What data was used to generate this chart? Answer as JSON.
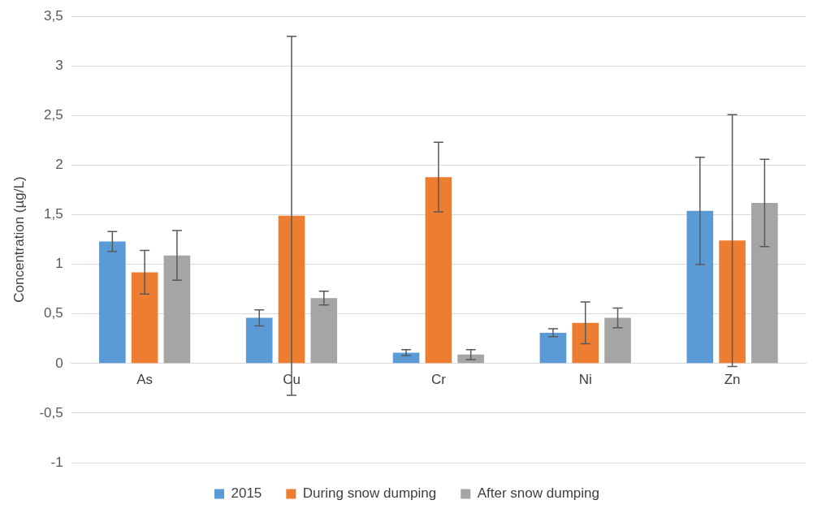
{
  "chart_data": {
    "type": "bar",
    "ylabel": "Concentration (µg/L)",
    "categories": [
      "As",
      "Cu",
      "Cr",
      "Ni",
      "Zn"
    ],
    "series": [
      {
        "name": "2015",
        "color": "#5b9bd5",
        "values": [
          1.23,
          0.46,
          0.11,
          0.31,
          1.54
        ],
        "errors": [
          0.1,
          0.08,
          0.03,
          0.04,
          0.54
        ]
      },
      {
        "name": "During snow dumping",
        "color": "#ed7d31",
        "values": [
          0.92,
          1.49,
          1.88,
          0.41,
          1.24
        ],
        "errors": [
          0.22,
          1.81,
          0.35,
          0.21,
          1.27
        ]
      },
      {
        "name": "After snow dumping",
        "color": "#a5a5a5",
        "values": [
          1.09,
          0.66,
          0.09,
          0.46,
          1.62
        ],
        "errors": [
          0.25,
          0.07,
          0.05,
          0.1,
          0.44
        ]
      }
    ],
    "ylim": [
      -1,
      3.5
    ],
    "yticks": [
      {
        "value": -1,
        "label": "-1"
      },
      {
        "value": -0.5,
        "label": "-0,5"
      },
      {
        "value": 0,
        "label": "0"
      },
      {
        "value": 0.5,
        "label": "0,5"
      },
      {
        "value": 1,
        "label": "1"
      },
      {
        "value": 1.5,
        "label": "1,5"
      },
      {
        "value": 2,
        "label": "2"
      },
      {
        "value": 2.5,
        "label": "2,5"
      },
      {
        "value": 3,
        "label": "3"
      },
      {
        "value": 3.5,
        "label": "3,5"
      }
    ],
    "grid": "y",
    "legend": "bottom"
  }
}
